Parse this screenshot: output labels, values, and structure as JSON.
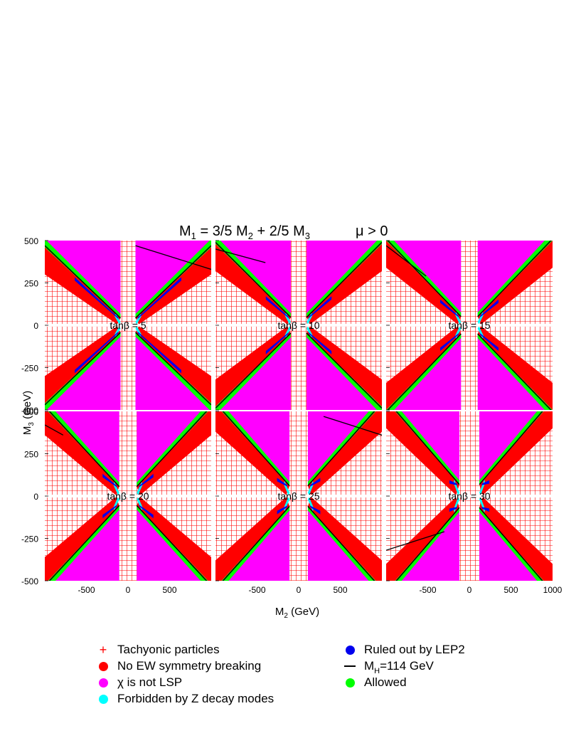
{
  "chart_data": {
    "type": "scatter",
    "title": "M1 = 3/5 M2 + 2/5 M3",
    "title_parts": {
      "lead": "M",
      "s1": "1",
      "mid": " = 3/5 M",
      "s2": "2",
      "mid2": " + 2/5 M",
      "s3": "3"
    },
    "condition": "μ > 0",
    "xlabel": "M2 (GeV)",
    "xlabel_parts": {
      "main": "M",
      "sub": "2",
      "unit": " (GeV)"
    },
    "ylabel": "M3 (GeV)",
    "ylabel_parts": {
      "main": "M",
      "sub": "3",
      "unit": " (GeV)"
    },
    "xlim": [
      -1000,
      1000
    ],
    "ylim": [
      -500,
      500
    ],
    "x_ticks": [
      "-500",
      "0",
      "500"
    ],
    "x_ticks_last": [
      "-500",
      "0",
      "500",
      "1000"
    ],
    "y_ticks": [
      "500",
      "250",
      "0",
      "-250",
      "-500"
    ],
    "grid": "dense red tachyonic cross-hatch",
    "panels": [
      {
        "label": "tanβ = 5",
        "tanb": 5,
        "gap": 90,
        "lep2": [
          0.55,
          0.35
        ],
        "higgs": [
          [
            90,
            470
          ],
          [
            1000,
            330
          ]
        ]
      },
      {
        "label": "tanβ = 10",
        "tanb": 10,
        "gap": 95,
        "lep2": [
          0.3,
          0.25
        ],
        "higgs": [
          [
            -1000,
            450
          ],
          [
            -400,
            370
          ]
        ]
      },
      {
        "label": "tanβ = 15",
        "tanb": 15,
        "gap": 100,
        "lep2": [
          0.25,
          0.15
        ],
        "higgs": [
          [
            -1000,
            470
          ],
          [
            -520,
            290
          ]
        ]
      },
      {
        "label": "tanβ = 20",
        "tanb": 20,
        "gap": 105,
        "lep2": [
          0.2,
          0.1
        ],
        "higgs": [
          [
            -1000,
            420
          ],
          [
            -780,
            360
          ]
        ]
      },
      {
        "label": "tanβ = 25",
        "tanb": 25,
        "gap": 110,
        "lep2": [
          0.15,
          0.08
        ],
        "higgs": [
          [
            300,
            470
          ],
          [
            1000,
            360
          ]
        ]
      },
      {
        "label": "tanβ = 30",
        "tanb": 30,
        "gap": 120,
        "lep2": [
          0.12,
          0.06
        ],
        "higgs": [
          [
            -1000,
            -320
          ],
          [
            -300,
            -210
          ]
        ]
      }
    ],
    "legend": [
      {
        "label": "Tachyonic particles",
        "symbol": "plus",
        "color": "#ff0000"
      },
      {
        "label": "No EW symmetry breaking",
        "symbol": "dot",
        "color": "#ff0000"
      },
      {
        "label": "χ is not LSP",
        "symbol": "dot",
        "color": "#ff00ff"
      },
      {
        "label": "Forbidden by Z decay modes",
        "symbol": "dot",
        "color": "#00ffff"
      },
      {
        "label": "Ruled out by LEP2",
        "symbol": "dot",
        "color": "#0000ee"
      },
      {
        "label": "=114 GeV",
        "symbol": "line",
        "color": "#000000",
        "prefix": "M",
        "sub": "H"
      },
      {
        "label": "Allowed",
        "symbol": "dot",
        "color": "#00ff00"
      }
    ],
    "colors": {
      "tachyonic": "#ff0000",
      "no_ewsb": "#ff0000",
      "not_lsp": "#ff00ff",
      "z_decay": "#00ffff",
      "lep2": "#0000ee",
      "allowed": "#00ff00",
      "higgs_line": "#000000"
    }
  }
}
